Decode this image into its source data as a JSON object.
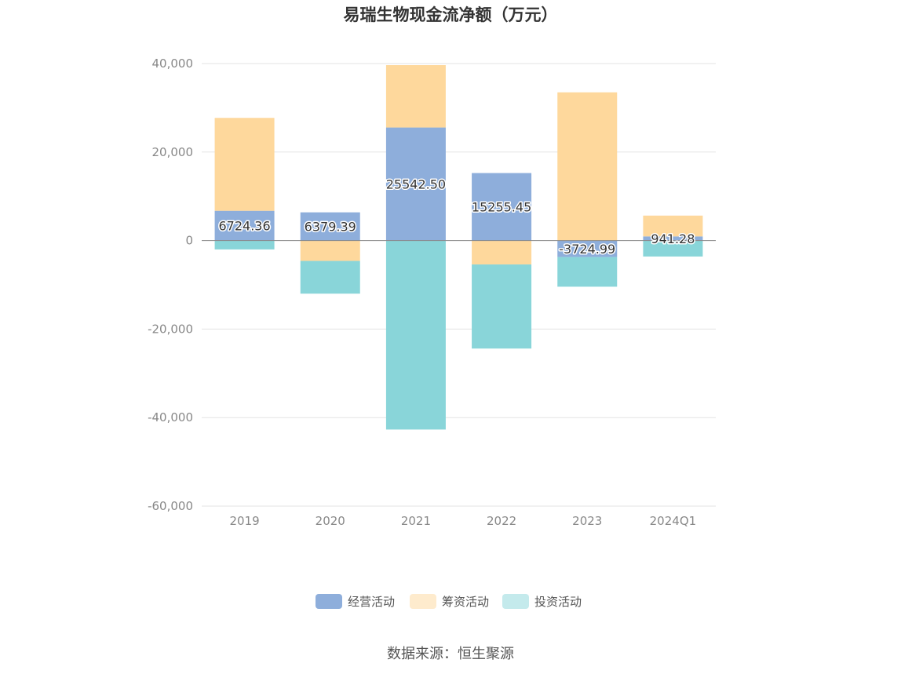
{
  "chart_data": {
    "type": "bar",
    "stacked": true,
    "title": "易瑞生物现金流净额（万元）",
    "categories": [
      "2019",
      "2020",
      "2021",
      "2022",
      "2023",
      "2024Q1"
    ],
    "series": [
      {
        "name": "经营活动",
        "color": "#8eaedb",
        "values": [
          6724.36,
          6379.39,
          25542.5,
          15255.45,
          -3724.99,
          941.28
        ],
        "labels": [
          "6724.36",
          "6379.39",
          "25542.50",
          "15255.45",
          "-3724.99",
          "941.28"
        ]
      },
      {
        "name": "筹资活动",
        "color": "#fed89c",
        "values": [
          21000,
          -4600,
          14100,
          -5400,
          33500,
          4700
        ]
      },
      {
        "name": "投资活动",
        "color": "#89d5d9",
        "values": [
          -2000,
          -7400,
          -42700,
          -19000,
          -6700,
          -3600
        ]
      }
    ],
    "yticks": [
      40000,
      20000,
      0,
      -20000,
      -40000,
      -60000
    ],
    "ytick_labels": [
      "40,000",
      "20,000",
      "0",
      "-20,000",
      "-40,000",
      "-60,000"
    ],
    "ylim": [
      -60000,
      40000
    ],
    "grid": true,
    "legend_position": "bottom"
  },
  "source": "数据来源：恒生聚源"
}
